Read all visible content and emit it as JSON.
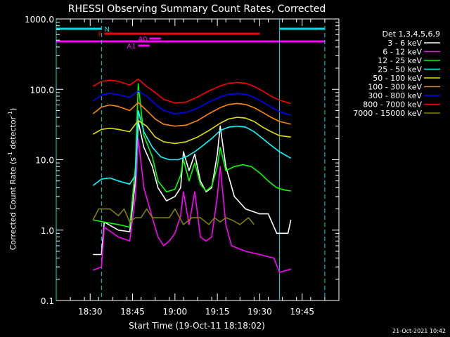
{
  "chart_data": {
    "type": "line",
    "title": "RHESSI Observing Summary Count Rates, Corrected",
    "xlabel": "Start Time (19-Oct-11 18:18:02)",
    "ylabel": "Corrected Count Rate (s^-1 detector^-1)",
    "ylabel_parts": {
      "main": "Corrected Count Rate (s",
      "sup1": "-1",
      "mid": " detector",
      "sup2": "-1",
      "end": ")"
    },
    "yscale": "log",
    "ylim": [
      0.1,
      1000
    ],
    "xlim": [
      "18:18",
      "19:58"
    ],
    "y_tick_labels": [
      "0.1",
      "1.0",
      "10.0",
      "100.0",
      "1000.0"
    ],
    "y_tick_values": [
      0.1,
      1,
      10,
      100,
      1000
    ],
    "x_tick_labels": [
      "18:30",
      "18:45",
      "19:00",
      "19:15",
      "19:30",
      "19:45"
    ],
    "x_tick_values": [
      "18:30",
      "18:45",
      "19:00",
      "19:15",
      "19:30",
      "19:45"
    ],
    "legend_placement": "top-right, outside plot",
    "legend_title": "Det 1,3,4,5,6,9",
    "series": [
      {
        "name": "3 - 6 keV",
        "color": "#ffffff",
        "points": [
          [
            "18:31",
            0.45
          ],
          [
            "18:34",
            0.45
          ],
          [
            "18:35",
            1.3
          ],
          [
            "18:40",
            1.0
          ],
          [
            "18:44",
            0.95
          ],
          [
            "18:46",
            5
          ],
          [
            "18:47",
            35
          ],
          [
            "18:49",
            15
          ],
          [
            "18:52",
            8
          ],
          [
            "18:54",
            4
          ],
          [
            "18:57",
            2.6
          ],
          [
            "19:00",
            3
          ],
          [
            "19:02",
            4
          ],
          [
            "19:03",
            13
          ],
          [
            "19:05",
            7
          ],
          [
            "19:07",
            12
          ],
          [
            "19:09",
            5
          ],
          [
            "19:11",
            3.5
          ],
          [
            "19:13",
            4
          ],
          [
            "19:15",
            12
          ],
          [
            "19:16",
            30
          ],
          [
            "19:18",
            8
          ],
          [
            "19:21",
            3
          ],
          [
            "19:25",
            2
          ],
          [
            "19:30",
            1.7
          ],
          [
            "19:33",
            1.7
          ],
          [
            "19:36",
            0.9
          ],
          [
            "19:40",
            0.9
          ],
          [
            "19:41",
            1.4
          ]
        ]
      },
      {
        "name": "6 - 12 keV",
        "color": "#ff00ff",
        "points": [
          [
            "18:31",
            0.27
          ],
          [
            "18:34",
            0.3
          ],
          [
            "18:35",
            1.1
          ],
          [
            "18:40",
            0.8
          ],
          [
            "18:44",
            0.7
          ],
          [
            "18:46",
            3
          ],
          [
            "18:47",
            20
          ],
          [
            "18:49",
            4
          ],
          [
            "18:52",
            1.5
          ],
          [
            "18:54",
            0.8
          ],
          [
            "18:56",
            0.6
          ],
          [
            "18:58",
            0.7
          ],
          [
            "19:00",
            0.9
          ],
          [
            "19:02",
            1.6
          ],
          [
            "19:03",
            3.5
          ],
          [
            "19:05",
            1.2
          ],
          [
            "19:07",
            3.5
          ],
          [
            "19:09",
            0.8
          ],
          [
            "19:11",
            0.7
          ],
          [
            "19:13",
            0.8
          ],
          [
            "19:15",
            3
          ],
          [
            "19:16",
            8
          ],
          [
            "19:18",
            1.2
          ],
          [
            "19:20",
            0.6
          ],
          [
            "19:25",
            0.5
          ],
          [
            "19:30",
            0.45
          ],
          [
            "19:35",
            0.4
          ],
          [
            "19:37",
            0.25
          ],
          [
            "19:41",
            0.28
          ]
        ]
      },
      {
        "name": "12 - 25 keV",
        "color": "#00ff00",
        "points": [
          [
            "18:31",
            1.4
          ],
          [
            "18:35",
            1.3
          ],
          [
            "18:40",
            1.2
          ],
          [
            "18:44",
            1.1
          ],
          [
            "18:46",
            8
          ],
          [
            "18:47",
            120
          ],
          [
            "18:49",
            22
          ],
          [
            "18:52",
            11
          ],
          [
            "18:54",
            5
          ],
          [
            "18:57",
            3.5
          ],
          [
            "19:00",
            3.8
          ],
          [
            "19:02",
            6
          ],
          [
            "19:03",
            10
          ],
          [
            "19:05",
            5
          ],
          [
            "19:07",
            9
          ],
          [
            "19:09",
            4.5
          ],
          [
            "19:11",
            3.6
          ],
          [
            "19:13",
            4.2
          ],
          [
            "19:15",
            8
          ],
          [
            "19:16",
            15
          ],
          [
            "19:18",
            7
          ],
          [
            "19:21",
            8
          ],
          [
            "19:24",
            8.5
          ],
          [
            "19:27",
            8
          ],
          [
            "19:30",
            6.5
          ],
          [
            "19:33",
            5
          ],
          [
            "19:36",
            4
          ],
          [
            "19:39",
            3.7
          ],
          [
            "19:41",
            3.6
          ]
        ]
      },
      {
        "name": "25 - 50 keV",
        "color": "#00ffff",
        "points": [
          [
            "18:31",
            4.3
          ],
          [
            "18:34",
            5.3
          ],
          [
            "18:37",
            5.5
          ],
          [
            "18:40",
            5
          ],
          [
            "18:44",
            4.5
          ],
          [
            "18:46",
            6
          ],
          [
            "18:47",
            50
          ],
          [
            "18:49",
            25
          ],
          [
            "18:52",
            15
          ],
          [
            "18:55",
            11
          ],
          [
            "18:58",
            10
          ],
          [
            "19:01",
            10
          ],
          [
            "19:04",
            11
          ],
          [
            "19:07",
            13
          ],
          [
            "19:10",
            16
          ],
          [
            "19:13",
            20
          ],
          [
            "19:16",
            26
          ],
          [
            "19:19",
            29
          ],
          [
            "19:22",
            30
          ],
          [
            "19:25",
            29
          ],
          [
            "19:28",
            25
          ],
          [
            "19:31",
            20
          ],
          [
            "19:34",
            16
          ],
          [
            "19:37",
            13
          ],
          [
            "19:41",
            10.5
          ]
        ]
      },
      {
        "name": "50 - 100 keV",
        "color": "#e0e000",
        "points": [
          [
            "18:31",
            23
          ],
          [
            "18:34",
            27
          ],
          [
            "18:37",
            28
          ],
          [
            "18:40",
            27
          ],
          [
            "18:44",
            25
          ],
          [
            "18:47",
            36
          ],
          [
            "18:50",
            30
          ],
          [
            "18:53",
            21
          ],
          [
            "18:56",
            18
          ],
          [
            "19:00",
            17
          ],
          [
            "19:04",
            18
          ],
          [
            "19:08",
            21
          ],
          [
            "19:12",
            26
          ],
          [
            "19:16",
            33
          ],
          [
            "19:19",
            38
          ],
          [
            "19:22",
            40
          ],
          [
            "19:25",
            39
          ],
          [
            "19:28",
            35
          ],
          [
            "19:31",
            29
          ],
          [
            "19:34",
            25
          ],
          [
            "19:37",
            22
          ],
          [
            "19:41",
            21
          ]
        ]
      },
      {
        "name": "100 - 300 keV",
        "color": "#ff8800",
        "points": [
          [
            "18:31",
            45
          ],
          [
            "18:34",
            56
          ],
          [
            "18:37",
            60
          ],
          [
            "18:40",
            57
          ],
          [
            "18:44",
            50
          ],
          [
            "18:47",
            65
          ],
          [
            "18:50",
            50
          ],
          [
            "18:53",
            38
          ],
          [
            "18:56",
            32
          ],
          [
            "19:00",
            30
          ],
          [
            "19:04",
            31
          ],
          [
            "19:08",
            36
          ],
          [
            "19:12",
            45
          ],
          [
            "19:16",
            55
          ],
          [
            "19:19",
            61
          ],
          [
            "19:22",
            63
          ],
          [
            "19:25",
            61
          ],
          [
            "19:28",
            55
          ],
          [
            "19:31",
            47
          ],
          [
            "19:34",
            40
          ],
          [
            "19:37",
            35
          ],
          [
            "19:41",
            32
          ]
        ]
      },
      {
        "name": "300 - 800 keV",
        "color": "#0000ff",
        "points": [
          [
            "18:31",
            68
          ],
          [
            "18:34",
            83
          ],
          [
            "18:37",
            88
          ],
          [
            "18:40",
            84
          ],
          [
            "18:44",
            77
          ],
          [
            "18:47",
            95
          ],
          [
            "18:50",
            80
          ],
          [
            "18:53",
            62
          ],
          [
            "18:56",
            50
          ],
          [
            "19:00",
            45
          ],
          [
            "19:04",
            47
          ],
          [
            "19:08",
            54
          ],
          [
            "19:12",
            66
          ],
          [
            "19:16",
            78
          ],
          [
            "19:19",
            85
          ],
          [
            "19:22",
            87
          ],
          [
            "19:25",
            85
          ],
          [
            "19:28",
            77
          ],
          [
            "19:31",
            66
          ],
          [
            "19:34",
            56
          ],
          [
            "19:37",
            48
          ],
          [
            "19:41",
            43
          ]
        ]
      },
      {
        "name": "800 - 7000 keV",
        "color": "#ff0000",
        "points": [
          [
            "18:31",
            110
          ],
          [
            "18:34",
            130
          ],
          [
            "18:37",
            135
          ],
          [
            "18:40",
            130
          ],
          [
            "18:44",
            115
          ],
          [
            "18:47",
            140
          ],
          [
            "18:50",
            110
          ],
          [
            "18:53",
            90
          ],
          [
            "18:56",
            72
          ],
          [
            "19:00",
            64
          ],
          [
            "19:04",
            66
          ],
          [
            "19:08",
            78
          ],
          [
            "19:12",
            95
          ],
          [
            "19:16",
            112
          ],
          [
            "19:19",
            122
          ],
          [
            "19:22",
            125
          ],
          [
            "19:25",
            122
          ],
          [
            "19:28",
            110
          ],
          [
            "19:31",
            95
          ],
          [
            "19:34",
            80
          ],
          [
            "19:37",
            70
          ],
          [
            "19:41",
            63
          ]
        ]
      },
      {
        "name": "7000 - 15000 keV",
        "color": "#808000",
        "points": [
          [
            "18:31",
            1.4
          ],
          [
            "18:33",
            2
          ],
          [
            "18:37",
            2
          ],
          [
            "18:40",
            1.6
          ],
          [
            "18:42",
            2
          ],
          [
            "18:44",
            1.3
          ],
          [
            "18:46",
            1.5
          ],
          [
            "18:48",
            1.5
          ],
          [
            "18:50",
            2
          ],
          [
            "18:52",
            1.5
          ],
          [
            "18:55",
            1.5
          ],
          [
            "18:58",
            1.5
          ],
          [
            "19:00",
            2
          ],
          [
            "19:03",
            1.2
          ],
          [
            "19:06",
            1.5
          ],
          [
            "19:09",
            1.5
          ],
          [
            "19:12",
            1.2
          ],
          [
            "19:14",
            1.5
          ],
          [
            "19:16",
            1.3
          ],
          [
            "19:18",
            1.5
          ],
          [
            "19:20",
            1.4
          ],
          [
            "19:23",
            1.2
          ],
          [
            "19:26",
            1.5
          ],
          [
            "19:28",
            1.2
          ]
        ]
      }
    ],
    "flag_bars": [
      {
        "label": "N",
        "color": "#00e0e0",
        "y_rank": 0,
        "segments": [
          [
            "18:18",
            "18:34"
          ],
          [
            "19:37",
            "19:53"
          ]
        ]
      },
      {
        "label": "F",
        "color": "#ff0000",
        "y_rank": 1,
        "segments": [
          [
            "18:35",
            "19:30"
          ]
        ]
      },
      {
        "label": "A0",
        "color": "#ff00ff",
        "y_rank": 2,
        "segments": [
          [
            "18:51",
            "18:55"
          ]
        ]
      },
      {
        "label": "",
        "color": "#ff00ff",
        "y_rank": 3,
        "segments": [
          [
            "18:18",
            "19:53"
          ]
        ]
      },
      {
        "label": "A1",
        "color": "#ff00ff",
        "y_rank": 4,
        "segments": [
          [
            "18:47",
            "18:51"
          ]
        ]
      }
    ],
    "vlines_solid": {
      "color": "#00e0e0",
      "x": [
        "18:18",
        "19:37"
      ]
    },
    "vlines_dashed": {
      "color": "#00e0e0",
      "x": [
        "18:34",
        "19:53"
      ]
    }
  },
  "footer": {
    "date_stamp": "21-Oct-2021 10:42"
  }
}
